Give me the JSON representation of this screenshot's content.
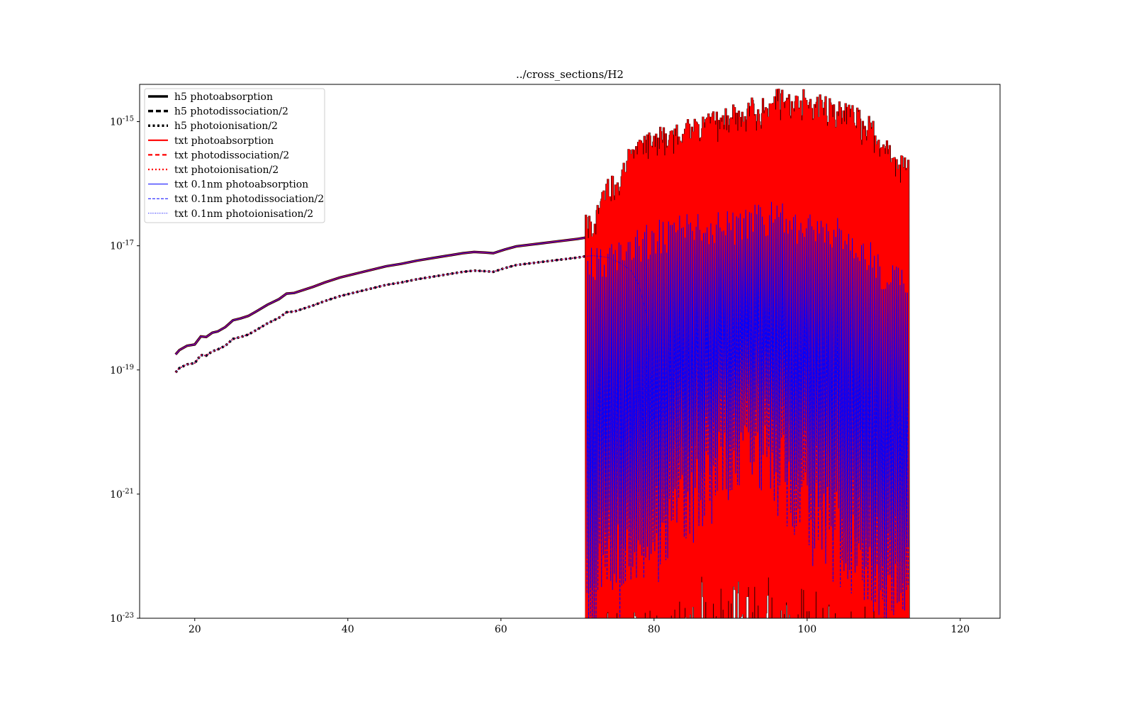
{
  "chart_data": {
    "type": "line",
    "title": "../cross_sections/H2",
    "xlabel": "",
    "ylabel": "",
    "xlim": [
      12.8,
      125.2
    ],
    "ylim_log10": [
      -23,
      -14.4
    ],
    "y_scale": "log",
    "grid": false,
    "legend_position": "top-left",
    "x_ticks": [
      "20",
      "40",
      "60",
      "80",
      "100",
      "120"
    ],
    "x_tick_values": [
      20,
      40,
      60,
      80,
      100,
      120
    ],
    "y_ticks": [
      {
        "value": -15,
        "base": "10",
        "exp": "-15"
      },
      {
        "value": -17,
        "base": "10",
        "exp": "-17"
      },
      {
        "value": -19,
        "base": "10",
        "exp": "-19"
      },
      {
        "value": -21,
        "base": "10",
        "exp": "-21"
      },
      {
        "value": -23,
        "base": "10",
        "exp": "-23"
      }
    ],
    "colors": {
      "h5": "#000000",
      "txt": "#ff0000",
      "txt_01nm": "#0000ff"
    },
    "legend": [
      {
        "label": "h5 photoabsorption",
        "color": "#000000",
        "style": "solid",
        "width": 3.5
      },
      {
        "label": "h5 photodissociation/2",
        "color": "#000000",
        "style": "dashed",
        "width": 3.5
      },
      {
        "label": "h5 photoionisation/2",
        "color": "#000000",
        "style": "dotted",
        "width": 3.5
      },
      {
        "label": "txt photoabsorption",
        "color": "#ff0000",
        "style": "solid",
        "width": 2.2
      },
      {
        "label": "txt photodissociation/2",
        "color": "#ff0000",
        "style": "dashed",
        "width": 2.2
      },
      {
        "label": "txt photoionisation/2",
        "color": "#ff0000",
        "style": "dotted",
        "width": 2.2
      },
      {
        "label": "txt 0.1nm photoabsorption",
        "color": "#0000ff",
        "style": "solid",
        "width": 1
      },
      {
        "label": "txt 0.1nm photodissociation/2",
        "color": "#0000ff",
        "style": "dashed",
        "width": 1
      },
      {
        "label": "txt 0.1nm photoionisation/2",
        "color": "#0000ff",
        "style": "dotted",
        "width": 1
      }
    ],
    "series": [
      {
        "name": "txt photoabsorption",
        "x": [
          17.5,
          18.0,
          19.0,
          20.0,
          20.8,
          21.5,
          22.3,
          23.0,
          24.0,
          25.0,
          26.0,
          27.0,
          28.0,
          29.5,
          31.0,
          32.0,
          33.0,
          34.0,
          35.5,
          37.0,
          39.0,
          41.0,
          43.0,
          45.0,
          47.0,
          49.0,
          51.0,
          53.0,
          55.0,
          56.5,
          58.0,
          59.0,
          60.5,
          62.0,
          64.0,
          66.0,
          68.0,
          70.0,
          71.0
        ],
        "log10_y": [
          -18.75,
          -18.68,
          -18.61,
          -18.59,
          -18.46,
          -18.47,
          -18.4,
          -18.38,
          -18.31,
          -18.2,
          -18.17,
          -18.13,
          -18.06,
          -17.95,
          -17.86,
          -17.77,
          -17.76,
          -17.72,
          -17.66,
          -17.59,
          -17.51,
          -17.45,
          -17.39,
          -17.33,
          -17.29,
          -17.24,
          -17.2,
          -17.16,
          -17.12,
          -17.1,
          -17.11,
          -17.12,
          -17.06,
          -17.01,
          -16.98,
          -16.95,
          -16.92,
          -16.89,
          -16.87
        ]
      },
      {
        "name": "txt photodissociation/2",
        "x": [
          17.5,
          18.0,
          19.0,
          20.0,
          20.8,
          21.5,
          22.3,
          23.0,
          24.0,
          25.0,
          26.0,
          27.0,
          28.0,
          29.5,
          31.0,
          32.0,
          33.0,
          34.0,
          35.5,
          37.0,
          39.0,
          41.0,
          43.0,
          45.0,
          47.0,
          49.0,
          51.0,
          53.0,
          55.0,
          56.5,
          58.0,
          59.0,
          60.5,
          62.0,
          64.0,
          66.0,
          68.0,
          70.0,
          71.0
        ],
        "log10_y": [
          -19.04,
          -18.97,
          -18.91,
          -18.89,
          -18.76,
          -18.77,
          -18.7,
          -18.67,
          -18.61,
          -18.5,
          -18.47,
          -18.43,
          -18.36,
          -18.25,
          -18.16,
          -18.07,
          -18.06,
          -18.02,
          -17.96,
          -17.89,
          -17.81,
          -17.75,
          -17.69,
          -17.63,
          -17.59,
          -17.54,
          -17.5,
          -17.46,
          -17.42,
          -17.4,
          -17.41,
          -17.42,
          -17.36,
          -17.31,
          -17.28,
          -17.25,
          -17.22,
          -17.19,
          -17.17
        ]
      },
      {
        "name": "txt photoionisation/2",
        "x": [
          17.5,
          18.0,
          19.0,
          20.0,
          20.8,
          21.5,
          22.3,
          23.0,
          24.0,
          25.0,
          26.0,
          27.0,
          28.0,
          29.5,
          31.0,
          32.0,
          33.0,
          34.0,
          35.5,
          37.0,
          39.0,
          41.0,
          43.0,
          45.0,
          47.0,
          49.0,
          51.0,
          53.0,
          55.0,
          56.5,
          58.0,
          59.0,
          60.5,
          62.0,
          64.0,
          66.0,
          68.0,
          70.0,
          71.0
        ],
        "log10_y": [
          -19.04,
          -18.97,
          -18.91,
          -18.89,
          -18.76,
          -18.77,
          -18.7,
          -18.67,
          -18.61,
          -18.5,
          -18.47,
          -18.43,
          -18.36,
          -18.25,
          -18.16,
          -18.07,
          -18.06,
          -18.02,
          -17.96,
          -17.89,
          -17.81,
          -17.75,
          -17.69,
          -17.63,
          -17.59,
          -17.54,
          -17.5,
          -17.46,
          -17.42,
          -17.4,
          -17.41,
          -17.42,
          -17.36,
          -17.31,
          -17.28,
          -17.25,
          -17.22,
          -17.19,
          -17.17
        ]
      },
      {
        "name": "txt 0.1nm photoionisation/2",
        "x": [
          71.0,
          72.0,
          73.0,
          74.0,
          75.0,
          76.0,
          77.0,
          78.0,
          79.0,
          80.0
        ],
        "log10_y": [
          -17.17,
          -17.16,
          -17.17,
          -17.19,
          -17.24,
          -17.31,
          -17.4,
          -17.62,
          -18.1,
          -19.8
        ]
      }
    ],
    "band_region": {
      "x_start": 71.1,
      "x_end": 113.3,
      "h5_peaks_x": [
        71.8,
        72.7,
        73.8,
        75.0,
        76.3,
        77.6,
        79.0,
        80.5,
        82.0,
        83.6,
        85.3,
        87.0,
        88.8,
        90.6,
        92.5,
        94.4,
        96.4,
        98.5,
        100.6,
        102.8,
        105.0,
        107.3,
        109.6,
        111.9
      ],
      "h5_peaks_log10": [
        -16.5,
        -16.2,
        -15.9,
        -15.7,
        -15.5,
        -15.3,
        -15.2,
        -15.1,
        -15.0,
        -15.0,
        -14.9,
        -14.8,
        -14.8,
        -14.7,
        -14.6,
        -14.55,
        -14.45,
        -14.45,
        -14.5,
        -14.6,
        -14.65,
        -14.8,
        -15.1,
        -15.5
      ],
      "blue_peaks_x": [
        73.5,
        75.1,
        76.7,
        78.3,
        79.9,
        81.6,
        83.3,
        85.1,
        86.9,
        88.8,
        90.7,
        92.7,
        94.7,
        96.8,
        98.9,
        101.1,
        103.4,
        105.7,
        108.0,
        110.4
      ],
      "blue_peaks_log10": [
        -16.95,
        -16.85,
        -16.75,
        -16.7,
        -16.6,
        -16.55,
        -16.5,
        -16.45,
        -16.45,
        -16.4,
        -16.4,
        -16.35,
        -16.3,
        -16.25,
        -16.4,
        -16.45,
        -16.5,
        -16.6,
        -16.85,
        -17.3
      ]
    }
  }
}
